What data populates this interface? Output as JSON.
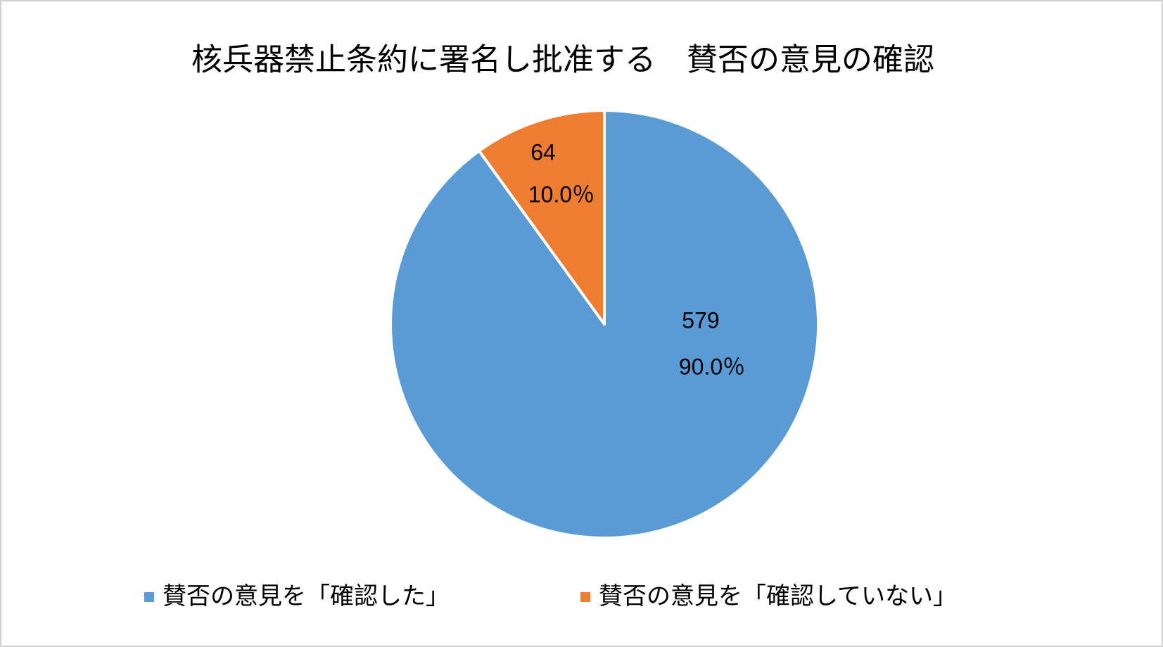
{
  "chart_data": {
    "type": "pie",
    "title": "核兵器禁止条約に署名し批准する　賛否の意見の確認",
    "categories": [
      "賛否の意見を「確認した」",
      "賛否の意見を「確認していない」"
    ],
    "values": [
      579,
      64
    ],
    "percentages": [
      90.0,
      10.0
    ],
    "percentage_labels": [
      "90.0％",
      "10.0％"
    ],
    "colors": [
      "#5b9bd5",
      "#ed7d31"
    ],
    "legend": "bottom"
  }
}
